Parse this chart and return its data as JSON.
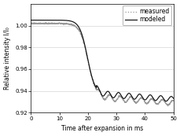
{
  "title": "",
  "xlabel": "Time after expansion in ms",
  "ylabel": "Relative intensity I/I₀",
  "xlim": [
    0,
    50
  ],
  "ylim": [
    0.92,
    1.02
  ],
  "yticks": [
    0.92,
    0.94,
    0.96,
    0.98,
    1.0
  ],
  "xticks": [
    0,
    10,
    20,
    30,
    40,
    50
  ],
  "measured_color": "#999999",
  "modeled_color": "#111111",
  "shift": 0.003,
  "figsize": [
    2.3,
    1.73
  ],
  "dpi": 100
}
